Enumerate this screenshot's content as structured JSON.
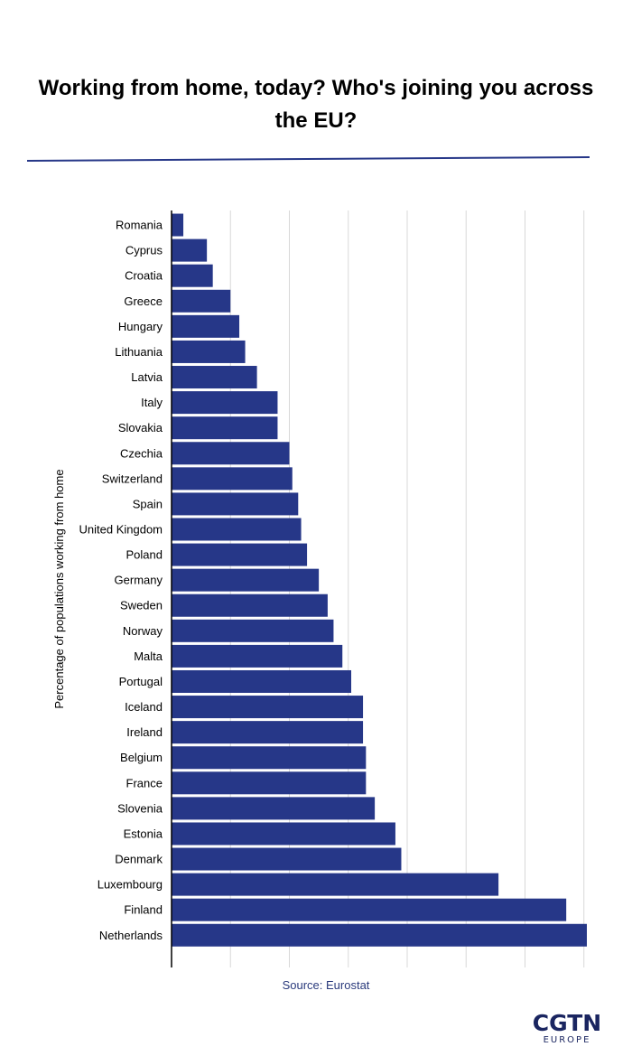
{
  "title": "Working from home, today? Who's joining you across the EU?",
  "source": "Source: Eurostat",
  "logo": {
    "main": "CGTN",
    "sub": "EUROPE"
  },
  "colors": {
    "bar": "#263788",
    "rule": "#263788",
    "grid": "#d8d8d8",
    "axis": "#000000",
    "source_text": "#2a3a7c",
    "logo": "#1a2560"
  },
  "chart_data": {
    "type": "bar",
    "orientation": "horizontal",
    "title": "Working from home, today? Who's joining you across the EU?",
    "ylabel": "Percentage of populations working from home",
    "xlabel": "",
    "xlim": [
      0,
      14.1
    ],
    "xticks": [
      2,
      4,
      6,
      8,
      10,
      12,
      14
    ],
    "grid": true,
    "categories": [
      "Romania",
      "Cyprus",
      "Croatia",
      "Greece",
      "Hungary",
      "Lithuania",
      "Latvia",
      "Italy",
      "Slovakia",
      "Czechia",
      "Switzerland",
      "Spain",
      "United Kingdom",
      "Poland",
      "Germany",
      "Sweden",
      "Norway",
      "Malta",
      "Portugal",
      "Iceland",
      "Ireland",
      "Belgium",
      "France",
      "Slovenia",
      "Estonia",
      "Denmark",
      "Luxembourg",
      "Finland",
      "Netherlands"
    ],
    "values": [
      0.4,
      1.2,
      1.4,
      2.0,
      2.3,
      2.5,
      2.9,
      3.6,
      3.6,
      4.0,
      4.1,
      4.3,
      4.4,
      4.6,
      5.0,
      5.3,
      5.5,
      5.8,
      6.1,
      6.5,
      6.5,
      6.6,
      6.6,
      6.9,
      7.6,
      7.8,
      11.1,
      13.4,
      14.1
    ]
  }
}
